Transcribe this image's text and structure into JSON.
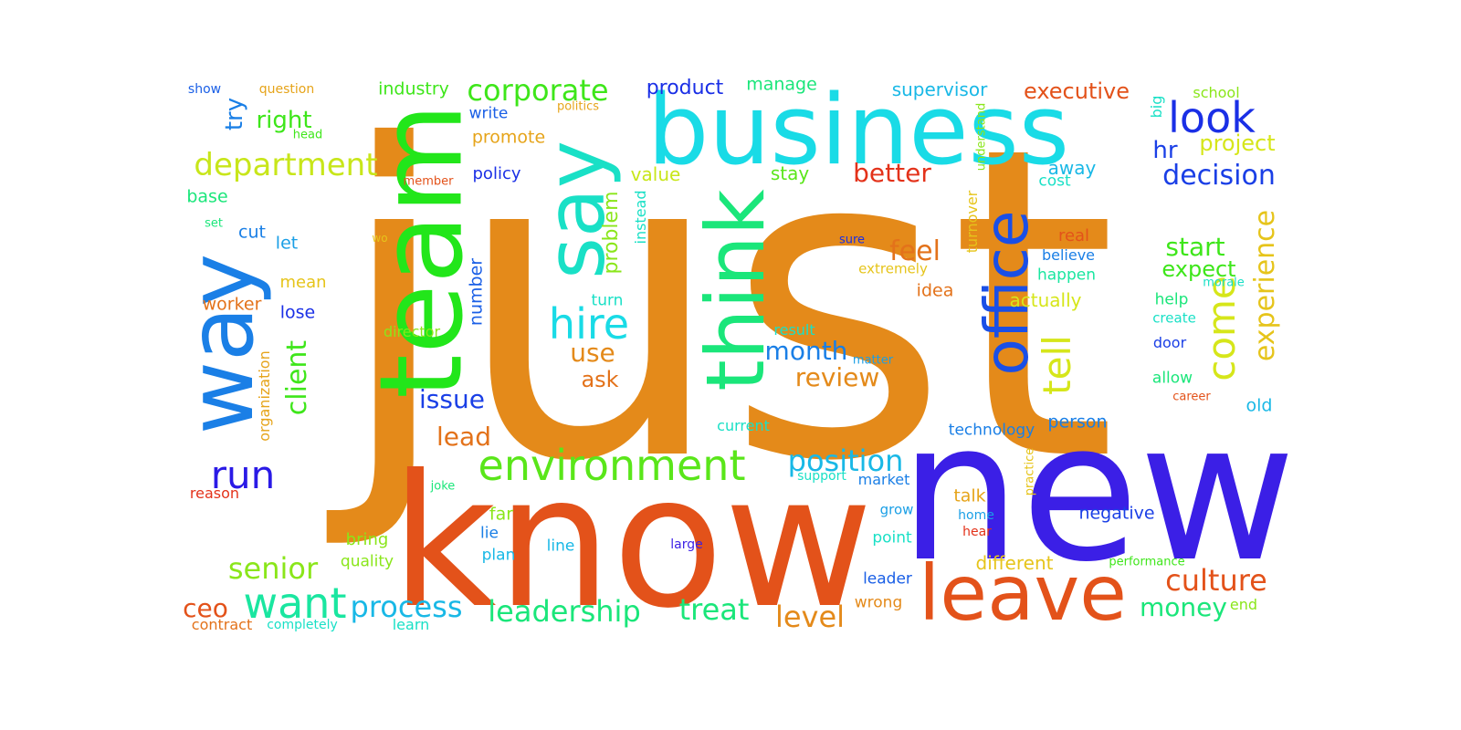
{
  "words": [
    {
      "text": "just",
      "color": "#e48a1a"
    },
    {
      "text": "know",
      "color": "#e3521a"
    },
    {
      "text": "new",
      "color": "#3b1fe6"
    },
    {
      "text": "business",
      "color": "#19dbe6"
    },
    {
      "text": "team",
      "color": "#22e61a"
    },
    {
      "text": "way",
      "color": "#1a7fe6"
    },
    {
      "text": "think",
      "color": "#1ae67a"
    },
    {
      "text": "say",
      "color": "#19e0c6"
    },
    {
      "text": "leave",
      "color": "#e3521a"
    },
    {
      "text": "office",
      "color": "#1a4fe6"
    },
    {
      "text": "environment",
      "color": "#5ae61a"
    },
    {
      "text": "want",
      "color": "#1ae6a0"
    },
    {
      "text": "hire",
      "color": "#19dbe6"
    },
    {
      "text": "look",
      "color": "#1a2fe6"
    },
    {
      "text": "corporate",
      "color": "#3ee61a"
    },
    {
      "text": "department",
      "color": "#c8e61a"
    },
    {
      "text": "come",
      "color": "#d6e61a"
    },
    {
      "text": "tell",
      "color": "#d6e61a"
    },
    {
      "text": "run",
      "color": "#2a1ae6"
    },
    {
      "text": "position",
      "color": "#19b8e6"
    },
    {
      "text": "leadership",
      "color": "#1ae67a"
    },
    {
      "text": "culture",
      "color": "#e3521a"
    },
    {
      "text": "process",
      "color": "#19b8e6"
    },
    {
      "text": "senior",
      "color": "#8ae61a"
    },
    {
      "text": "client",
      "color": "#3ee61a"
    },
    {
      "text": "experience",
      "color": "#e6c41a"
    },
    {
      "text": "decision",
      "color": "#1a3fe6"
    },
    {
      "text": "level",
      "color": "#e48a1a"
    },
    {
      "text": "treat",
      "color": "#1ae67a"
    },
    {
      "text": "money",
      "color": "#1ae67a"
    },
    {
      "text": "start",
      "color": "#3ee61a"
    },
    {
      "text": "month",
      "color": "#1a7fe6"
    },
    {
      "text": "review",
      "color": "#e48a1a"
    },
    {
      "text": "feel",
      "color": "#e3721a"
    },
    {
      "text": "better",
      "color": "#e3321a"
    },
    {
      "text": "executive",
      "color": "#e3521a"
    },
    {
      "text": "issue",
      "color": "#1a3fe6"
    },
    {
      "text": "use",
      "color": "#e48a1a"
    },
    {
      "text": "lead",
      "color": "#e3721a"
    },
    {
      "text": "ceo",
      "color": "#e3521a"
    },
    {
      "text": "right",
      "color": "#3ee61a"
    },
    {
      "text": "try",
      "color": "#1a7fe6"
    },
    {
      "text": "expect",
      "color": "#3ee61a"
    },
    {
      "text": "ask",
      "color": "#e3721a"
    },
    {
      "text": "hr",
      "color": "#1a3fe6"
    },
    {
      "text": "project",
      "color": "#d6e61a"
    },
    {
      "text": "problem",
      "color": "#8ae61a"
    },
    {
      "text": "product",
      "color": "#1a2fe6"
    },
    {
      "text": "supervisor",
      "color": "#19b8e6"
    },
    {
      "text": "industry",
      "color": "#3ee61a"
    },
    {
      "text": "manage",
      "color": "#1ae67a"
    },
    {
      "text": "promote",
      "color": "#e6a41a"
    },
    {
      "text": "write",
      "color": "#1a5fe6"
    },
    {
      "text": "policy",
      "color": "#1a2fe6"
    },
    {
      "text": "value",
      "color": "#c8e61a"
    },
    {
      "text": "stay",
      "color": "#5ae61a"
    },
    {
      "text": "away",
      "color": "#19b8e6"
    },
    {
      "text": "cost",
      "color": "#19e0c6"
    },
    {
      "text": "base",
      "color": "#1ae67a"
    },
    {
      "text": "cut",
      "color": "#1a7fe6"
    },
    {
      "text": "let",
      "color": "#1a9fe6"
    },
    {
      "text": "mean",
      "color": "#e6c41a"
    },
    {
      "text": "worker",
      "color": "#e3721a"
    },
    {
      "text": "lose",
      "color": "#1a2fe6"
    },
    {
      "text": "number",
      "color": "#1a5fe6"
    },
    {
      "text": "turn",
      "color": "#19e0c6"
    },
    {
      "text": "director",
      "color": "#8ae61a"
    },
    {
      "text": "result",
      "color": "#19e0c6"
    },
    {
      "text": "idea",
      "color": "#e3721a"
    },
    {
      "text": "actually",
      "color": "#d6e61a"
    },
    {
      "text": "happen",
      "color": "#1ae6a0"
    },
    {
      "text": "real",
      "color": "#e3521a"
    },
    {
      "text": "believe",
      "color": "#1a7fe6"
    },
    {
      "text": "help",
      "color": "#1ae67a"
    },
    {
      "text": "create",
      "color": "#19e0c6"
    },
    {
      "text": "door",
      "color": "#1a3fe6"
    },
    {
      "text": "allow",
      "color": "#1ae67a"
    },
    {
      "text": "old",
      "color": "#19b8e6"
    },
    {
      "text": "person",
      "color": "#1a7fe6"
    },
    {
      "text": "technology",
      "color": "#1a7fe6"
    },
    {
      "text": "current",
      "color": "#19e0c6"
    },
    {
      "text": "talk",
      "color": "#e6a41a"
    },
    {
      "text": "negative",
      "color": "#1a3fe6"
    },
    {
      "text": "different",
      "color": "#e6c41a"
    },
    {
      "text": "leader",
      "color": "#1a5fe6"
    },
    {
      "text": "wrong",
      "color": "#e48a1a"
    },
    {
      "text": "point",
      "color": "#19e0c6"
    },
    {
      "text": "grow",
      "color": "#1a9fe6"
    },
    {
      "text": "market",
      "color": "#1a7fe6"
    },
    {
      "text": "support",
      "color": "#19e0c6"
    },
    {
      "text": "far",
      "color": "#8ae61a"
    },
    {
      "text": "lie",
      "color": "#1a7fe6"
    },
    {
      "text": "plan",
      "color": "#19b8e6"
    },
    {
      "text": "line",
      "color": "#19b8e6"
    },
    {
      "text": "bring",
      "color": "#8ae61a"
    },
    {
      "text": "quality",
      "color": "#8ae61a"
    },
    {
      "text": "learn",
      "color": "#19e0c6"
    },
    {
      "text": "contract",
      "color": "#e3721a"
    },
    {
      "text": "completely",
      "color": "#19e0c6"
    },
    {
      "text": "reason",
      "color": "#e3321a"
    },
    {
      "text": "joke",
      "color": "#1ae67a"
    },
    {
      "text": "large",
      "color": "#3b1fe6"
    },
    {
      "text": "show",
      "color": "#1a5fe6"
    },
    {
      "text": "question",
      "color": "#e6a41a"
    },
    {
      "text": "head",
      "color": "#3ee61a"
    },
    {
      "text": "politics",
      "color": "#e6a41a"
    },
    {
      "text": "member",
      "color": "#e3521a"
    },
    {
      "text": "set",
      "color": "#1ae67a"
    },
    {
      "text": "wo",
      "color": "#e6c41a"
    },
    {
      "text": "sure",
      "color": "#1a2fe6"
    },
    {
      "text": "extremely",
      "color": "#e6c41a"
    },
    {
      "text": "matter",
      "color": "#1a9fe6"
    },
    {
      "text": "morale",
      "color": "#19e0c6"
    },
    {
      "text": "career",
      "color": "#e3521a"
    },
    {
      "text": "home",
      "color": "#1a9fe6"
    },
    {
      "text": "hear",
      "color": "#e3321a"
    },
    {
      "text": "performance",
      "color": "#3ee61a"
    },
    {
      "text": "end",
      "color": "#8ae61a"
    },
    {
      "text": "school",
      "color": "#8ae61a"
    },
    {
      "text": "big",
      "color": "#19e0c6"
    },
    {
      "text": "understand",
      "color": "#8ae61a"
    },
    {
      "text": "turnover",
      "color": "#e6c41a"
    },
    {
      "text": "instead",
      "color": "#19e0c6"
    },
    {
      "text": "organization",
      "color": "#e6a41a"
    },
    {
      "text": "practice",
      "color": "#e6c41a"
    }
  ]
}
